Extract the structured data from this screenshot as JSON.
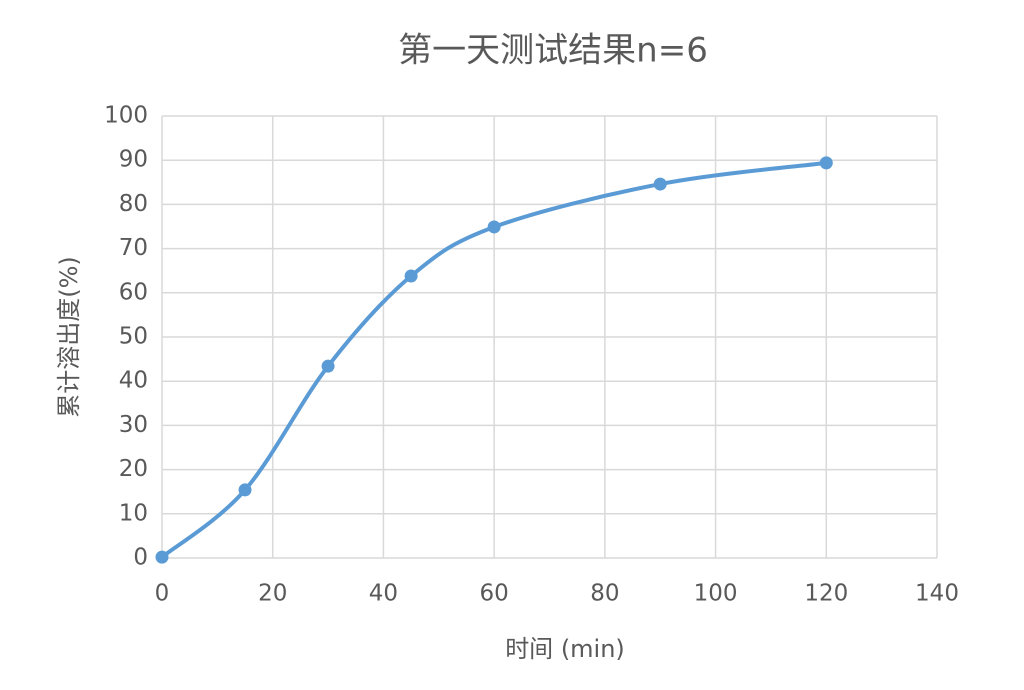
{
  "chart_data": {
    "type": "scatter-smooth",
    "title": "第一天测试结果n=6",
    "x_label": "时间 (min)",
    "y_label": "累计溶出度(%)",
    "series": [
      {
        "name": "累计溶出度",
        "color": "#5b9bd5",
        "x": [
          0,
          15,
          30,
          45,
          60,
          90,
          120
        ],
        "values": [
          0.2,
          15.4,
          43.4,
          63.8,
          74.9,
          84.6,
          89.4
        ]
      }
    ],
    "xlim": [
      0,
      140
    ],
    "xticks": [
      0,
      20,
      40,
      60,
      80,
      100,
      120,
      140
    ],
    "ylim": [
      0,
      100
    ],
    "yticks": [
      0,
      10,
      20,
      30,
      40,
      50,
      60,
      70,
      80,
      90,
      100
    ],
    "grid": true
  }
}
